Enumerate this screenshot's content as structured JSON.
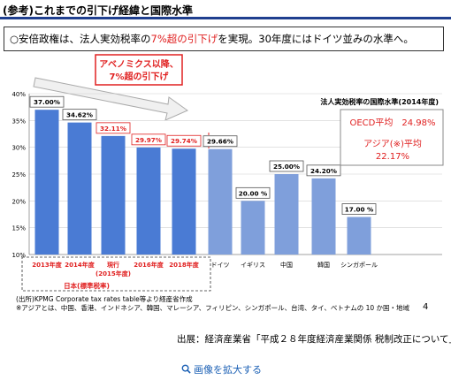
{
  "header": {
    "title": "(参考)これまでの引下げ経緯と国際水準"
  },
  "summary": {
    "prefix": "○安倍政権は、法人実効税率の",
    "highlight": "7%超の引下げ",
    "suffix": "を実現。30年度にはドイツ並みの水準へ。"
  },
  "callout": {
    "line1": "アベノミクス以降、",
    "line2": "7%超の引下げ"
  },
  "intl_title": "法人実効税率の国際水準(2014年度)",
  "oecd_label": "OECD平均　24.98%",
  "asia_label1": "アジア(※)平均",
  "asia_label2": "22.17%",
  "japan_sub_label": "日本(標準税率)",
  "notes": {
    "note1": "(出所)KPMG Corporate tax rates table等より経産省作成",
    "note2": "※アジアとは、中国、香港、インドネシア、韓国、マレーシア、フィリピン、シンガポール、台湾、タイ、ベトナムの 10 か国・地域"
  },
  "page_number": "4",
  "source": "出展：経済産業省「平成２８年度経済産業関係 税制改正について」",
  "enlarge_link": "画像を拡大する",
  "chart_data": {
    "type": "bar",
    "categories": [
      "2013年度",
      "2014年度",
      "現行 (2015年度)",
      "2016年度",
      "2018年度",
      "ドイツ",
      "イギリス",
      "中国",
      "韓国",
      "シンガポール"
    ],
    "values": [
      37.0,
      34.62,
      32.11,
      29.97,
      29.74,
      29.66,
      20.0,
      25.0,
      24.2,
      17.0
    ],
    "value_labels": [
      "37.00%",
      "34.62%",
      "32.11%",
      "29.97%",
      "29.74%",
      "29.66%",
      "20.00 %",
      "25.00%",
      "24.20%",
      "17.00 %"
    ],
    "yticks": [
      "10%",
      "15%",
      "20%",
      "25%",
      "30%",
      "35%",
      "40%"
    ],
    "ylim": [
      10,
      40
    ],
    "colors": {
      "japan": "#4a7bd4",
      "intl": "#7f9fdb",
      "red": "#e02020"
    }
  }
}
